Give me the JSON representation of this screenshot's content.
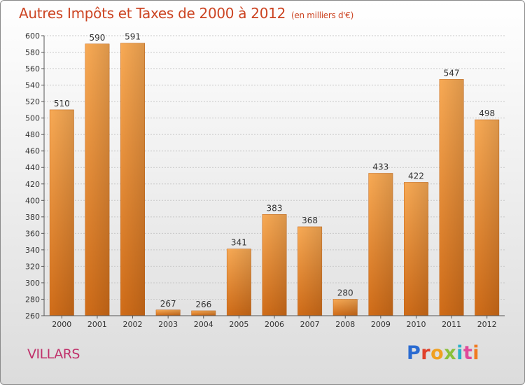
{
  "header": {
    "title": "Autres Impôts et Taxes de 2000 à 2012",
    "unit": "(en milliers d'€)"
  },
  "footer": {
    "commune": "VILLARS",
    "logo_text": "Proxiti"
  },
  "colors": {
    "bar_light": "#f7a850",
    "bar_dark": "#d4701a",
    "title": "#cc4422",
    "commune": "#c0306a"
  },
  "chart_data": {
    "type": "bar",
    "title": "Autres Impôts et Taxes de 2000 à 2012",
    "subtitle": "(en milliers d'€)",
    "xlabel": "",
    "ylabel": "",
    "categories": [
      "2000",
      "2001",
      "2002",
      "2003",
      "2004",
      "2005",
      "2006",
      "2007",
      "2008",
      "2009",
      "2010",
      "2011",
      "2012"
    ],
    "values": [
      510,
      590,
      591,
      267,
      266,
      341,
      383,
      368,
      280,
      433,
      422,
      547,
      498
    ],
    "ylim": [
      260,
      600
    ],
    "yticks": [
      260,
      280,
      300,
      320,
      340,
      360,
      380,
      400,
      420,
      440,
      460,
      480,
      500,
      520,
      540,
      560,
      580,
      600
    ],
    "grid": true,
    "data_labels": true
  }
}
